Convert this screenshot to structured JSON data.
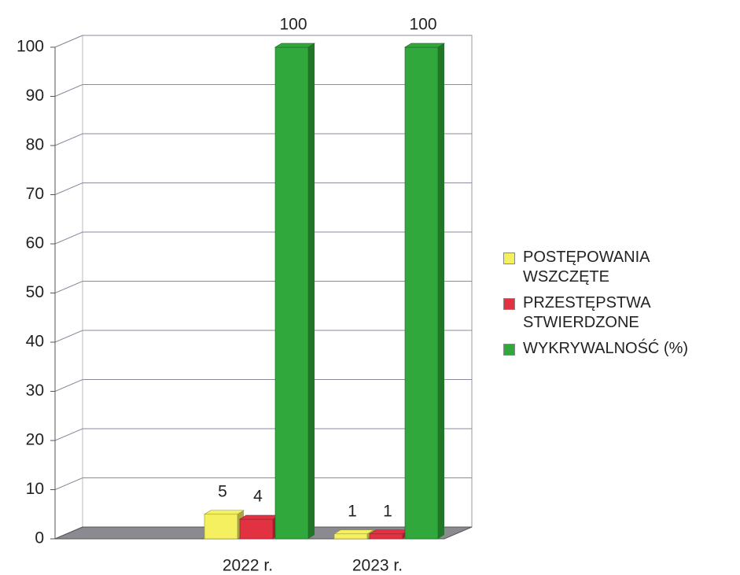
{
  "chart_data": {
    "type": "bar3d",
    "categories": [
      "2022 r.",
      "2023 r."
    ],
    "series": [
      {
        "name": "POSTĘPOWANIA WSZCZĘTE",
        "color": "#f4f060",
        "values": [
          5,
          1
        ]
      },
      {
        "name": "PRZESTĘPSTWA STWIERDZONE",
        "color": "#e23242",
        "values": [
          4,
          1
        ]
      },
      {
        "name": "WYKRYWALNOŚĆ (%)",
        "color": "#30a83c",
        "values": [
          100,
          100
        ]
      }
    ],
    "ylim": [
      0,
      100
    ],
    "yticks": [
      0,
      10,
      20,
      30,
      40,
      50,
      60,
      70,
      80,
      90,
      100
    ],
    "grid": true,
    "legend": "right"
  }
}
